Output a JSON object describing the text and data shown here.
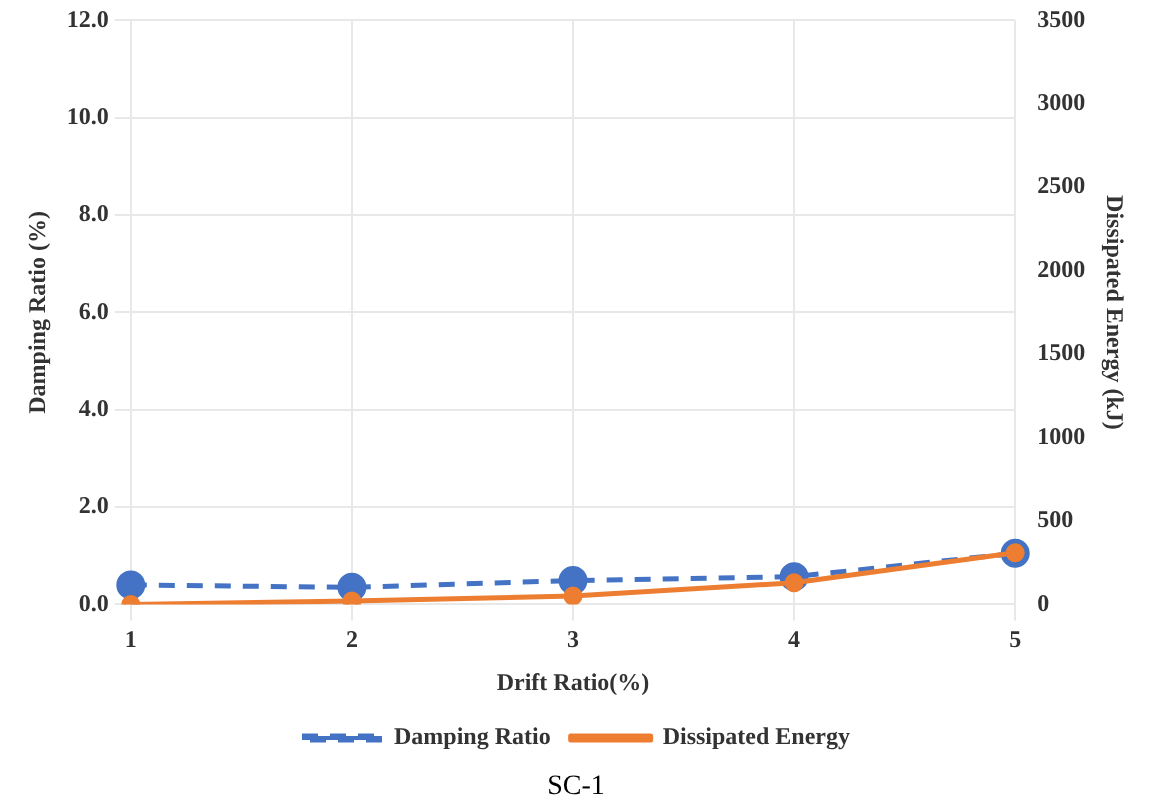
{
  "chart_data": {
    "type": "line",
    "xlabel": "Drift Ratio(%)",
    "ylabel": "Damping Ratio (%)",
    "y2label": "Dissipated Energy (kJ)",
    "categories": [
      "1",
      "2",
      "3",
      "4",
      "5"
    ],
    "series": [
      {
        "name": "Damping Ratio",
        "color": "#4472c4",
        "values": [
          0.4,
          0.35,
          0.49,
          0.57,
          1.05
        ],
        "line_style": "dashed",
        "marker": "circle"
      },
      {
        "name": "Dissipated Energy",
        "color": "#ed7d31",
        "values": [
          0,
          20,
          50,
          130,
          310
        ],
        "axis": "y2",
        "line_style": "solid",
        "marker": "circle"
      }
    ],
    "ylim": [
      0,
      12
    ],
    "yticks": [
      {
        "value": 0,
        "label": "0.0"
      },
      {
        "value": 2,
        "label": "2.0"
      },
      {
        "value": 4,
        "label": "4.0"
      },
      {
        "value": 6,
        "label": "6.0"
      },
      {
        "value": 8,
        "label": "8.0"
      },
      {
        "value": 10,
        "label": "10.0"
      },
      {
        "value": 12,
        "label": "12.0"
      }
    ],
    "y2lim": [
      0,
      3500
    ],
    "y2ticks": [
      0,
      500,
      1000,
      1500,
      2000,
      2500,
      3000,
      3500
    ],
    "grid": true,
    "legend": "bottom",
    "annotations": [
      "SC-1"
    ]
  }
}
